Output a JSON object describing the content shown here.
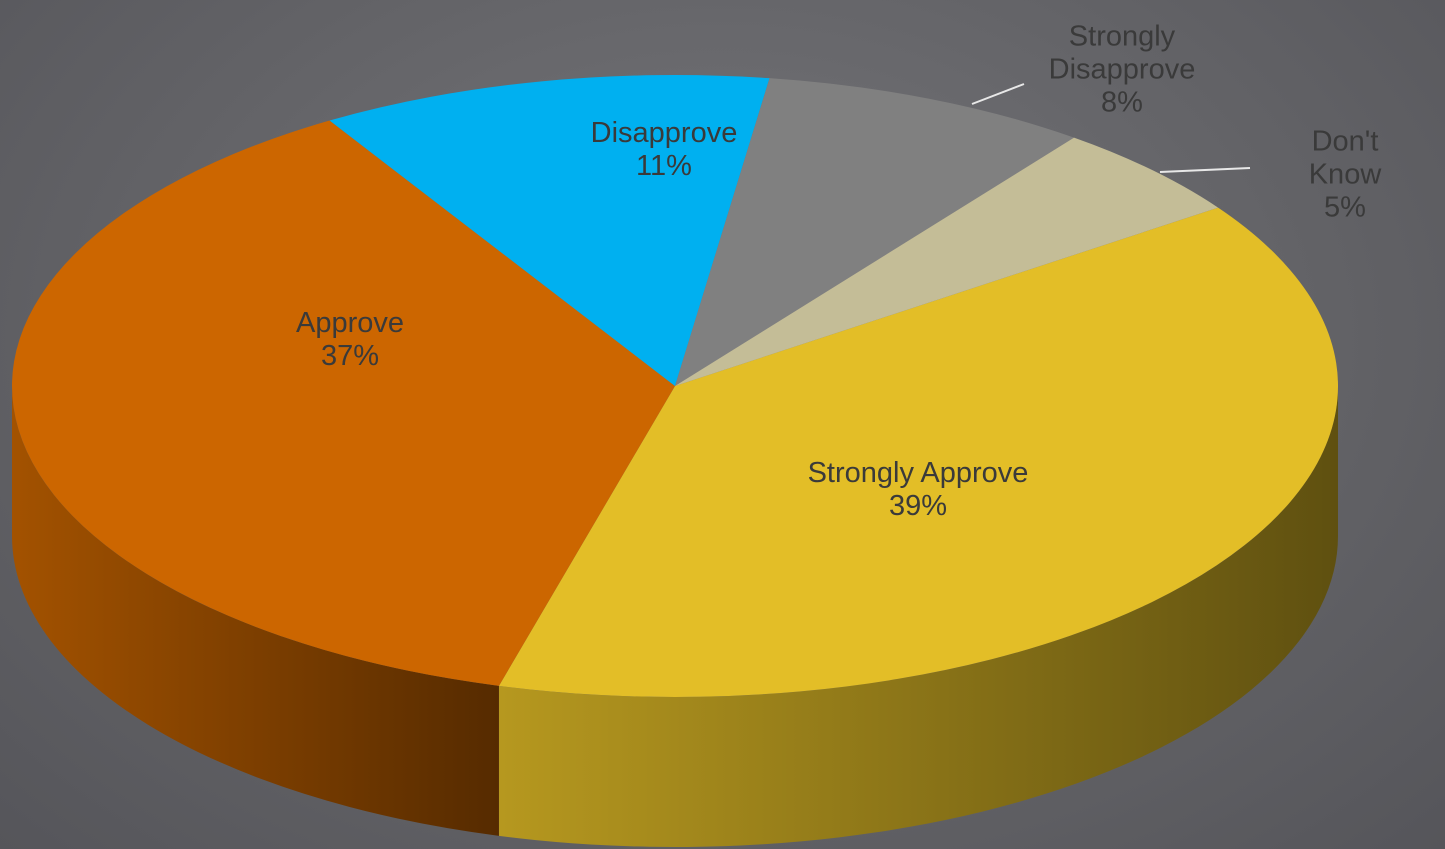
{
  "chart_data": {
    "type": "pie",
    "categories": [
      "Strongly Approve",
      "Approve",
      "Disapprove",
      "Strongly Disapprove",
      "Don't Know"
    ],
    "values": [
      39,
      37,
      11,
      8,
      5
    ],
    "value_labels": [
      "39%",
      "37%",
      "11%",
      "8%",
      "5%"
    ],
    "colors": [
      "#e3be27",
      "#cc6600",
      "#00b0f0",
      "#808080",
      "#c4bd97"
    ]
  }
}
